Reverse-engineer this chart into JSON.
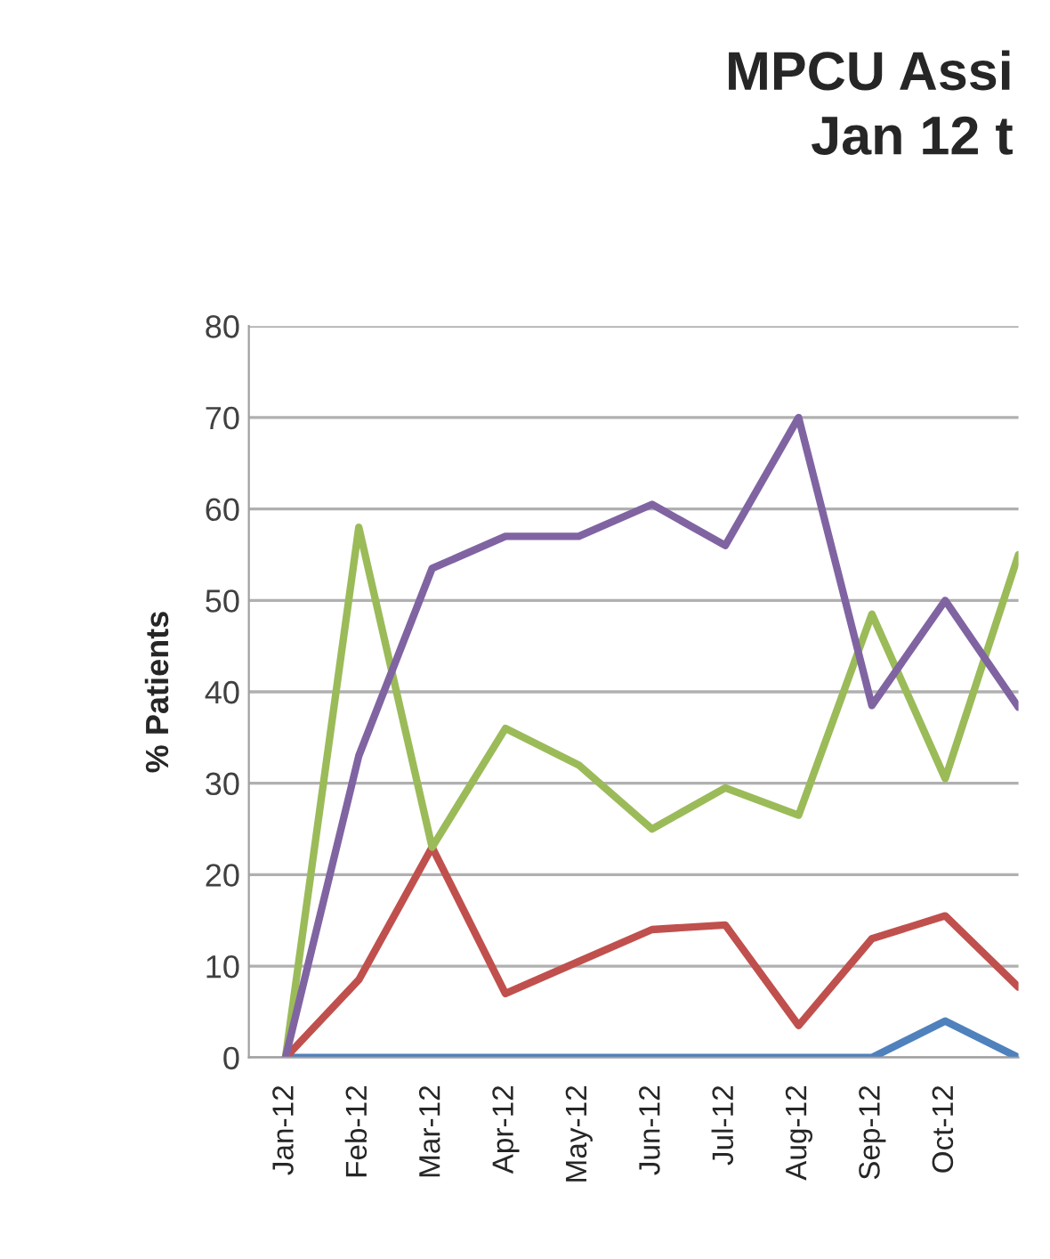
{
  "chart_data": {
    "type": "line",
    "title": "MPCU Assi\nJan 12 t",
    "ylabel": "% Patients",
    "categories": [
      "Jan-12",
      "Feb-12",
      "Mar-12",
      "Apr-12",
      "May-12",
      "Jun-12",
      "Jul-12",
      "Aug-12",
      "Sep-12",
      "Oct-12",
      null
    ],
    "series": [
      {
        "color": "#4f81bd",
        "values": [
          0,
          0,
          0,
          0,
          0,
          0,
          0,
          0,
          0,
          4,
          0
        ]
      },
      {
        "color": "#c0504d",
        "values": [
          0,
          8.5,
          23,
          7,
          10.5,
          14,
          14.5,
          3.5,
          13,
          15.5,
          7.7
        ]
      },
      {
        "color": "#9bbb59",
        "values": [
          0,
          58,
          23,
          36,
          32,
          25,
          29.5,
          26.5,
          48.5,
          30.5,
          55
        ]
      },
      {
        "color": "#8064a2",
        "values": [
          0,
          33,
          53.5,
          57,
          57,
          60.5,
          56,
          70,
          38.5,
          50,
          38.3
        ]
      }
    ],
    "ylim": [
      0,
      80
    ],
    "yticks": [
      0,
      10,
      20,
      30,
      40,
      50,
      60,
      70,
      80
    ],
    "grid": "y",
    "legend": false,
    "marker": "none",
    "line_style": "solid"
  }
}
